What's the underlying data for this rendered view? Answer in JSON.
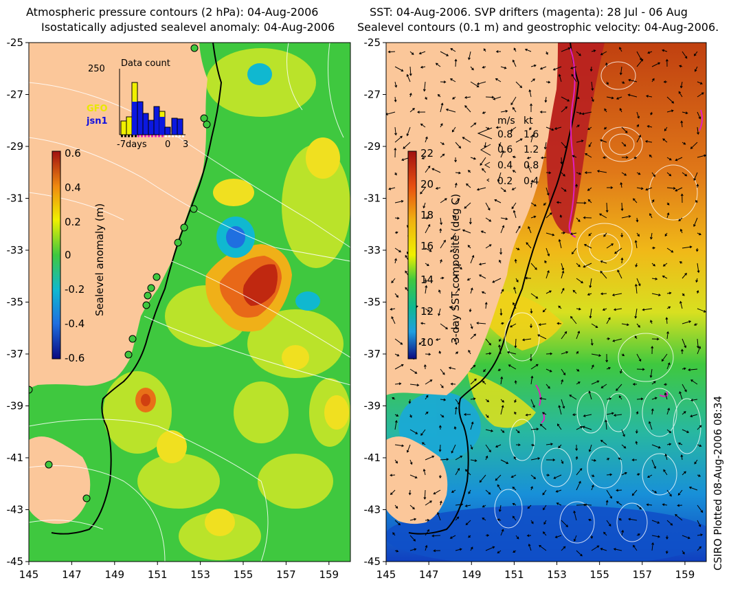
{
  "left_panel": {
    "title_line1": "Atmospheric pressure contours (2 hPa): 04-Aug-2006",
    "title_line2": "Isostatically adjusted sealevel anomaly: 04-Aug-2006",
    "colorbar_label": "Sealevel anomaly (m)",
    "colorbar_ticks": [
      "0.6",
      "0.4",
      "0.2",
      "0",
      "-0.2",
      "-0.4",
      "-0.6"
    ],
    "inset": {
      "title": "Data count",
      "ymax_label": "250",
      "legend_gfo": "GFO",
      "legend_jsn": "jsn1",
      "xlabel_left": "-7days",
      "xlabel_zero": "0",
      "xlabel_right": "3"
    }
  },
  "right_panel": {
    "title_line1": "SST: 04-Aug-2006. SVP drifters (magenta): 28 Jul - 06 Aug",
    "title_line2": "Sealevel contours (0.1 m) and geostrophic velocity: 04-Aug-2006.",
    "colorbar_label": "3-day SST composite (deg C)",
    "colorbar_ticks": [
      "22",
      "20",
      "18",
      "16",
      "14",
      "12",
      "10"
    ],
    "speed_legend": {
      "header_ms": "m/s",
      "header_kt": "kt",
      "rows": [
        {
          "ms": "0.8",
          "kt": "1.6"
        },
        {
          "ms": "0.6",
          "kt": "1.2"
        },
        {
          "ms": "0.4",
          "kt": "0.8"
        },
        {
          "ms": "0.2",
          "kt": "0.4"
        }
      ]
    }
  },
  "axes": {
    "lat_ticks": [
      "-25",
      "-27",
      "-29",
      "-31",
      "-33",
      "-35",
      "-37",
      "-39",
      "-41",
      "-43",
      "-45"
    ],
    "lon_ticks": [
      "145",
      "147",
      "149",
      "151",
      "153",
      "155",
      "157",
      "159"
    ]
  },
  "credit": "CSIRO Plotted 08-Aug-2006 08:34",
  "colors": {
    "land": "#fbc79a",
    "green": "#3fc83f",
    "yellow": "#f0f000",
    "orange": "#f08a10",
    "red": "#b8201a",
    "blue": "#1f6fe0",
    "navy": "#0a0a80",
    "magenta": "#e020c0"
  }
}
